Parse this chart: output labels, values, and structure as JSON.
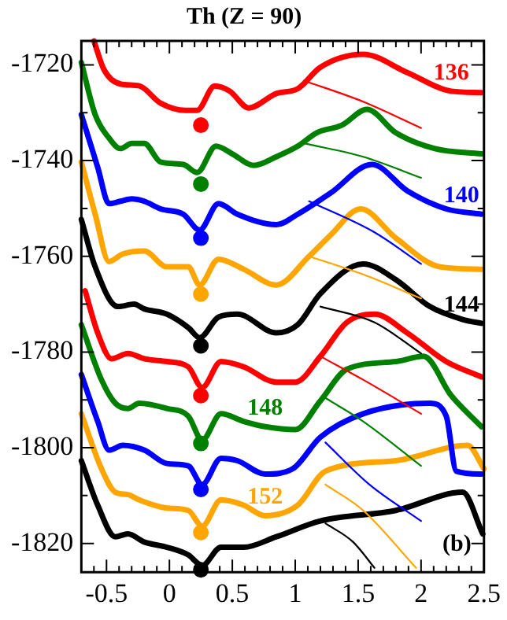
{
  "chart_data": {
    "type": "line",
    "title": "Th (Z = 90)",
    "xlim": [
      -0.7,
      2.5
    ],
    "ylim": [
      -1826,
      -1715
    ],
    "xticks": [
      {
        "value": -0.6,
        "label": null
      },
      -0.5,
      {
        "value": -0.4,
        "label": null
      },
      {
        "value": -0.3,
        "label": null
      },
      {
        "value": -0.2,
        "label": null
      },
      {
        "value": -0.1,
        "label": null
      },
      0,
      {
        "value": 0.1,
        "label": null
      },
      {
        "value": 0.2,
        "label": null
      },
      {
        "value": 0.3,
        "label": null
      },
      {
        "value": 0.4,
        "label": null
      },
      0.5,
      {
        "value": 0.6,
        "label": null
      },
      {
        "value": 0.7,
        "label": null
      },
      {
        "value": 0.8,
        "label": null
      },
      {
        "value": 0.9,
        "label": null
      },
      1,
      {
        "value": 1.1,
        "label": null
      },
      {
        "value": 1.2,
        "label": null
      },
      {
        "value": 1.3,
        "label": null
      },
      {
        "value": 1.4,
        "label": null
      },
      1.5,
      {
        "value": 1.6,
        "label": null
      },
      {
        "value": 1.7,
        "label": null
      },
      {
        "value": 1.8,
        "label": null
      },
      {
        "value": 1.9,
        "label": null
      },
      2,
      {
        "value": 2.1,
        "label": null
      },
      {
        "value": 2.2,
        "label": null
      },
      {
        "value": 2.3,
        "label": null
      },
      {
        "value": 2.4,
        "label": null
      },
      2.5
    ],
    "yticks": [
      -1820,
      {
        "value": -1810,
        "label": null
      },
      -1800,
      {
        "value": -1790,
        "label": null
      },
      -1780,
      {
        "value": -1770,
        "label": null
      },
      -1760,
      {
        "value": -1750,
        "label": null
      },
      -1740,
      {
        "value": -1730,
        "label": null
      },
      -1720
    ],
    "marker": "none",
    "series": [
      {
        "color": "#ff0000",
        "x": [
          -0.6,
          -0.52,
          -0.39,
          -0.24,
          -0.07,
          0.13,
          0.22,
          0.36,
          0.48,
          0.63,
          0.85,
          1.02,
          1.2,
          1.54,
          1.89,
          2.24,
          2.48
        ],
        "values": [
          -1715,
          -1721,
          -1724,
          -1724.4,
          -1728,
          -1729.5,
          -1729.5,
          -1724.4,
          -1725.5,
          -1729,
          -1726,
          -1725,
          -1720.5,
          -1717.8,
          -1721.6,
          -1725.5,
          -1725.8
        ]
      },
      {
        "color": "#ff0000",
        "x": [
          1.07,
          1.54,
          2.0
        ],
        "values": [
          -1723.3,
          -1727.7,
          -1733.2
        ]
      },
      {
        "color": "#008000",
        "x": [
          -0.7,
          -0.59,
          -0.48,
          -0.39,
          -0.3,
          -0.2,
          -0.07,
          0.11,
          0.22,
          0.37,
          0.5,
          0.67,
          0.85,
          1.02,
          1.17,
          1.37,
          1.57,
          1.8,
          2.11,
          2.48
        ],
        "values": [
          -1719.5,
          -1730.4,
          -1735.3,
          -1737.5,
          -1736.4,
          -1736.4,
          -1740.3,
          -1740.8,
          -1742.5,
          -1737,
          -1738.6,
          -1741,
          -1739.2,
          -1737,
          -1734.2,
          -1732.6,
          -1729.3,
          -1734.2,
          -1737.5,
          -1738.6
        ]
      },
      {
        "color": "#008000",
        "x": [
          1.07,
          1.54,
          2.0
        ],
        "values": [
          -1736.4,
          -1739.2,
          -1743.6
        ]
      },
      {
        "color": "#0000ff",
        "x": [
          -0.7,
          -0.57,
          -0.48,
          -0.39,
          -0.3,
          -0.2,
          -0.07,
          0.11,
          0.24,
          0.39,
          0.54,
          0.85,
          1.02,
          1.28,
          1.61,
          1.89,
          2.2,
          2.48
        ],
        "values": [
          -1730.4,
          -1741.4,
          -1749,
          -1748.5,
          -1748,
          -1748.5,
          -1750.1,
          -1751.2,
          -1754.5,
          -1749,
          -1751.2,
          -1753.4,
          -1751.2,
          -1746.8,
          -1740.8,
          -1746.3,
          -1750.1,
          -1751.2
        ]
      },
      {
        "color": "#0000ff",
        "x": [
          1.11,
          1.63,
          2.0
        ],
        "values": [
          -1748.5,
          -1755,
          -1761.6
        ]
      },
      {
        "color": "#ffa500",
        "x": [
          -0.7,
          -0.59,
          -0.48,
          -0.37,
          -0.2,
          -0.02,
          0.15,
          0.24,
          0.39,
          0.59,
          0.85,
          1.11,
          1.28,
          1.52,
          1.8,
          2.15,
          2.48
        ],
        "values": [
          -1740.3,
          -1751.2,
          -1761.1,
          -1759.5,
          -1758.9,
          -1762.2,
          -1762.2,
          -1766,
          -1760.6,
          -1762.7,
          -1766,
          -1760,
          -1755.6,
          -1750.1,
          -1756.2,
          -1762.2,
          -1762.7
        ]
      },
      {
        "color": "#ffa500",
        "x": [
          1.11,
          1.54,
          2.0
        ],
        "values": [
          -1760,
          -1763.8,
          -1768.8
        ]
      },
      {
        "color": "#000000",
        "x": [
          -0.7,
          -0.59,
          -0.41,
          -0.28,
          -0.2,
          -0.02,
          0.15,
          0.24,
          0.39,
          0.54,
          0.85,
          1.02,
          1.2,
          1.54,
          1.8,
          2.07,
          2.33,
          2.48
        ],
        "values": [
          -1752.3,
          -1762.2,
          -1770.5,
          -1770,
          -1771,
          -1772.1,
          -1774.9,
          -1777,
          -1772.7,
          -1772.1,
          -1776,
          -1774.3,
          -1767.8,
          -1761.6,
          -1764.9,
          -1770.5,
          -1773.2,
          -1774
        ]
      },
      {
        "color": "#000000",
        "x": [
          1.2,
          1.63,
          2.0
        ],
        "values": [
          -1770.5,
          -1773.8,
          -1780.3
        ]
      },
      {
        "color": "#ff0000",
        "x": [
          -0.67,
          -0.57,
          -0.46,
          -0.33,
          -0.2,
          -0.02,
          0.15,
          0.26,
          0.41,
          0.59,
          0.85,
          1.0,
          1.2,
          1.41,
          1.63,
          1.89,
          2.2,
          2.48
        ],
        "values": [
          -1767.2,
          -1776,
          -1781.4,
          -1780.3,
          -1781.4,
          -1782,
          -1783.1,
          -1787.4,
          -1782,
          -1783.1,
          -1786.3,
          -1786.3,
          -1780.9,
          -1773.8,
          -1772.1,
          -1776,
          -1782,
          -1785.2
        ]
      },
      {
        "color": "#ff0000",
        "x": [
          1.2,
          1.54,
          2.0
        ],
        "values": [
          -1780.9,
          -1785.8,
          -1792.9
        ]
      },
      {
        "color": "#008000",
        "x": [
          -0.7,
          -0.54,
          -0.43,
          -0.33,
          -0.24,
          -0.02,
          0.15,
          0.26,
          0.41,
          0.59,
          0.76,
          1.0,
          1.2,
          1.41,
          1.8,
          2.02,
          2.24,
          2.48
        ],
        "values": [
          -1774.3,
          -1785.8,
          -1790.7,
          -1791.8,
          -1790.7,
          -1791.8,
          -1793.4,
          -1798.4,
          -1792.9,
          -1794.5,
          -1795.6,
          -1796.2,
          -1790.2,
          -1783.6,
          -1782,
          -1780.9,
          -1789.1,
          -1795.6
        ]
      },
      {
        "color": "#008000",
        "x": [
          1.24,
          1.54,
          2.0
        ],
        "values": [
          -1789.6,
          -1794.5,
          -1803.8
        ]
      },
      {
        "color": "#0000ff",
        "x": [
          -0.7,
          -0.57,
          -0.48,
          -0.37,
          -0.2,
          -0.02,
          0.15,
          0.26,
          0.41,
          0.54,
          0.76,
          0.98,
          1.2,
          1.54,
          2.07,
          2.2,
          2.28,
          2.48
        ],
        "values": [
          -1784.7,
          -1794.5,
          -1800.5,
          -1799.5,
          -1800.5,
          -1803.3,
          -1803.8,
          -1807.7,
          -1802.2,
          -1802.7,
          -1805.5,
          -1804.4,
          -1797.8,
          -1792.9,
          -1790.7,
          -1793.4,
          -1804.9,
          -1805.5
        ]
      },
      {
        "color": "#0000ff",
        "x": [
          1.24,
          1.59,
          2.0
        ],
        "values": [
          -1798.9,
          -1807.7,
          -1815.3
        ]
      },
      {
        "color": "#ffa500",
        "x": [
          -0.7,
          -0.54,
          -0.43,
          -0.33,
          -0.24,
          -0.02,
          0.15,
          0.26,
          0.41,
          0.59,
          0.76,
          1.02,
          1.24,
          1.8,
          2.37,
          2.5
        ],
        "values": [
          -1792.9,
          -1804.4,
          -1809.3,
          -1809.8,
          -1810.9,
          -1812.6,
          -1813.1,
          -1816.4,
          -1810.9,
          -1812,
          -1814.2,
          -1812,
          -1804.9,
          -1802.7,
          -1799.5,
          -1804.4
        ]
      },
      {
        "color": "#ffa500",
        "x": [
          1.24,
          1.54,
          1.96
        ],
        "values": [
          -1807.7,
          -1813.1,
          -1825.1
        ]
      },
      {
        "color": "#000000",
        "x": [
          -0.7,
          -0.57,
          -0.43,
          -0.33,
          -0.2,
          -0.02,
          0.15,
          0.26,
          0.41,
          0.59,
          0.85,
          1.2,
          1.8,
          2.33,
          2.49
        ],
        "values": [
          -1802.7,
          -1812,
          -1818.6,
          -1818,
          -1819.7,
          -1820.8,
          -1822.4,
          -1824.6,
          -1820.8,
          -1820.8,
          -1818.6,
          -1815.3,
          -1813.1,
          -1809.3,
          -1818
        ]
      },
      {
        "color": "#000000",
        "x": [
          1.24,
          1.46,
          1.63
        ],
        "values": [
          -1815.8,
          -1819.7,
          -1825.1
        ]
      },
      {
        "type": "scatter",
        "marker": "circle",
        "x": [
          0.25,
          0.25,
          0.25,
          0.25,
          0.25,
          0.25,
          0.25,
          0.25,
          0.25,
          0.25
        ],
        "values": [
          -1732.6,
          -1744.9,
          -1756.2,
          -1767.9,
          -1778.7,
          -1789.1,
          -1799.1,
          -1808.7,
          -1817.7,
          -1825.5
        ],
        "colors": [
          "#ff0000",
          "#008000",
          "#0000ff",
          "#ffa500",
          "#000000",
          "#ff0000",
          "#008000",
          "#0000ff",
          "#ffa500",
          "#000000"
        ]
      }
    ],
    "annotations": [
      {
        "text": "136",
        "x": 2.24,
        "y": -1725.5
      },
      {
        "text": "140",
        "x": 2.48,
        "y": -1751.2
      },
      {
        "text": "144",
        "x": 2.48,
        "y": -1774
      },
      {
        "text": "148",
        "x": 0.76,
        "y": -1795.6
      },
      {
        "text": "152",
        "x": 0.76,
        "y": -1814.2
      },
      "(b)"
    ]
  }
}
